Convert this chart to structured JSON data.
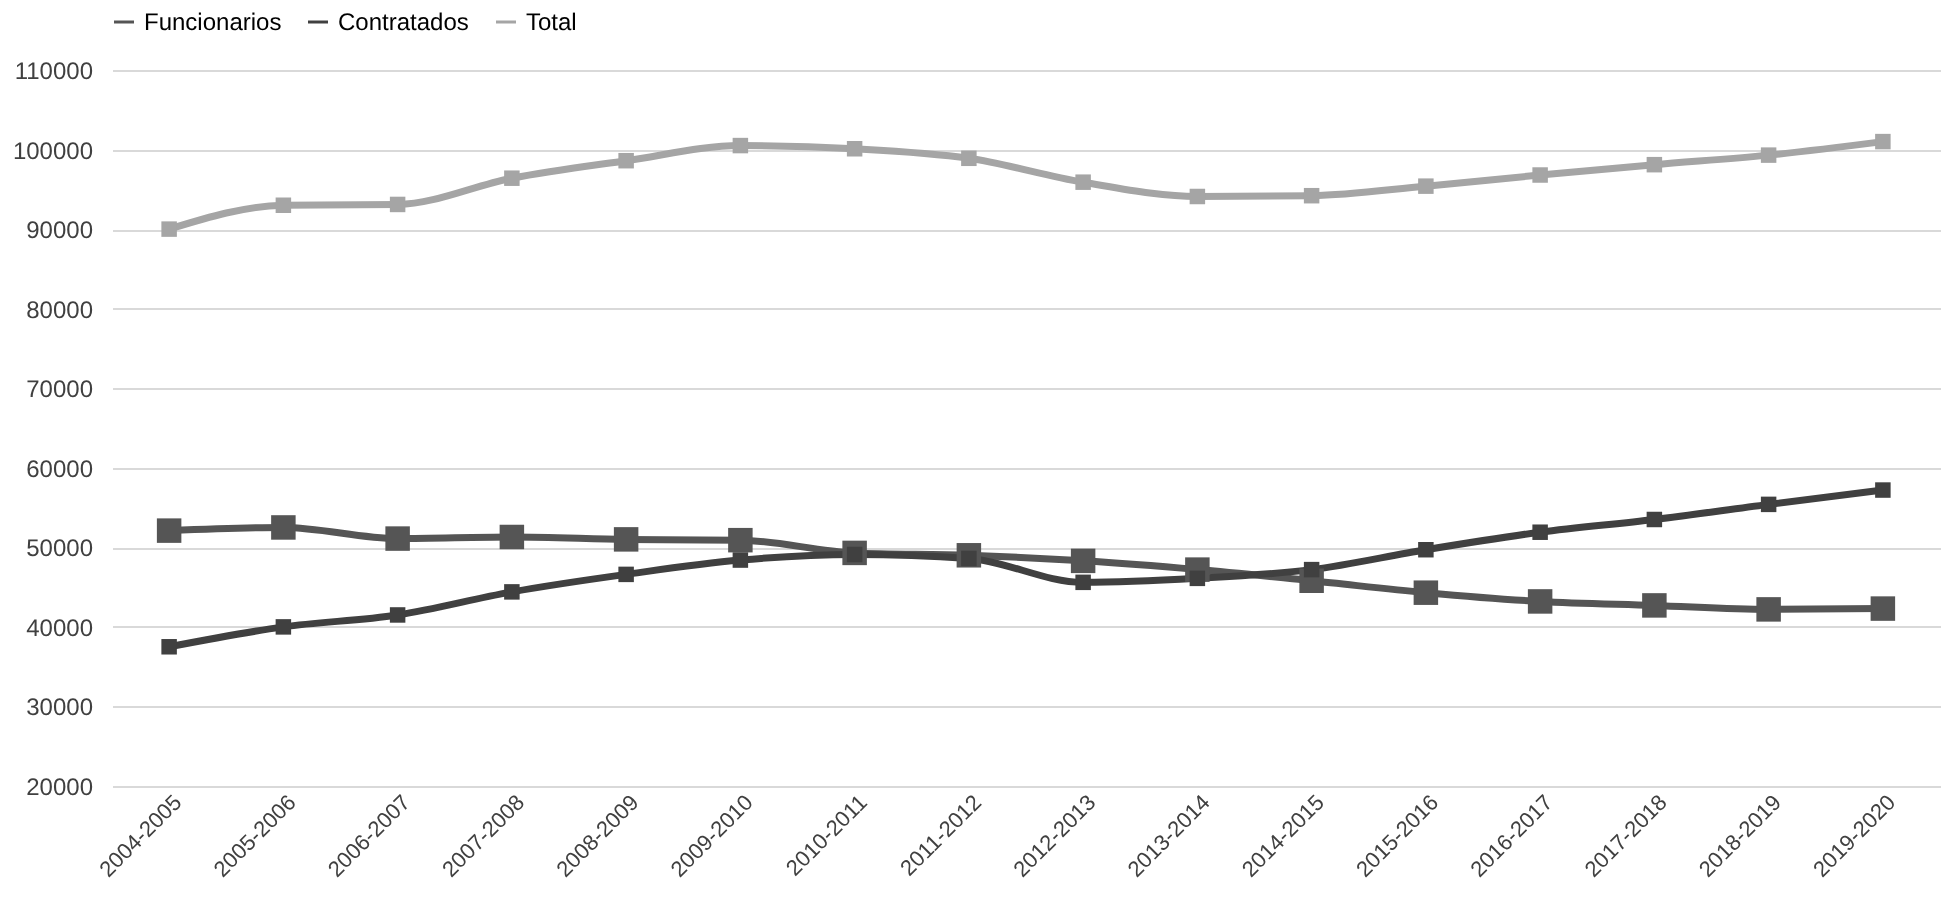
{
  "chart_data": {
    "type": "line",
    "categories": [
      "2004-2005",
      "2005-2006",
      "2006-2007",
      "2007-2008",
      "2008-2009",
      "2009-2010",
      "2010-2011",
      "2011-2012",
      "2012-2013",
      "2013-2014",
      "2014-2015",
      "2015-2016",
      "2016-2017",
      "2017-2018",
      "2018-2019",
      "2019-2020"
    ],
    "series": [
      {
        "name": "Funcionarios",
        "color": "#555555",
        "values": [
          52100,
          52500,
          51100,
          51300,
          51000,
          50900,
          49300,
          49000,
          48300,
          47200,
          45800,
          44300,
          43200,
          42700,
          42200,
          42300
        ]
      },
      {
        "name": "Contratados",
        "color": "#404040",
        "values": [
          37500,
          40000,
          41500,
          44400,
          46600,
          48400,
          49100,
          48600,
          45600,
          46100,
          47200,
          49700,
          51900,
          53500,
          55400,
          57200
        ]
      },
      {
        "name": "Total",
        "color": "#a5a5a5",
        "values": [
          90000,
          93000,
          93100,
          96400,
          98600,
          100500,
          100100,
          98900,
          95900,
          94100,
          94200,
          95400,
          96800,
          98100,
          99300,
          101000
        ]
      }
    ],
    "ylim": [
      20000,
      110000
    ],
    "yticks": [
      20000,
      30000,
      40000,
      50000,
      60000,
      70000,
      80000,
      90000,
      100000,
      110000
    ],
    "grid": "y",
    "legend": "top",
    "marker": "square",
    "line_style": "solid"
  }
}
